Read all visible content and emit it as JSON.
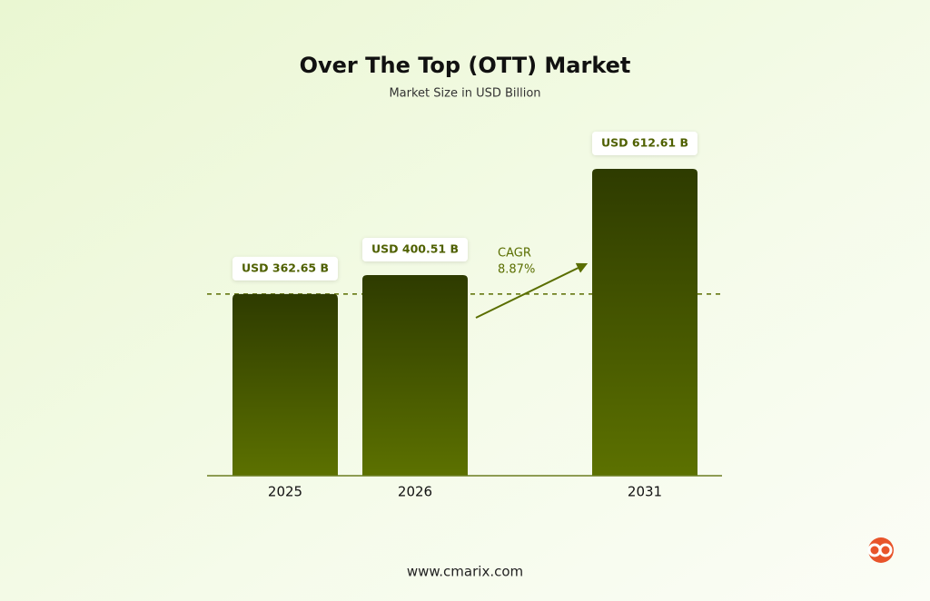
{
  "chart_data": {
    "type": "bar",
    "title": "Over The Top (OTT) Market",
    "subtitle": "Market Size in USD Billion",
    "categories": [
      "2025",
      "2026",
      "2031"
    ],
    "values": [
      362.65,
      400.51,
      612.61
    ],
    "value_labels": [
      "USD 362.65 B",
      "USD 400.51 B",
      "USD 612.61 B"
    ],
    "color": [
      "#2e3b00",
      "#5c7100"
    ],
    "annotation": [
      "CAGR",
      "8.87%"
    ],
    "source": "www.cmarix.com"
  }
}
